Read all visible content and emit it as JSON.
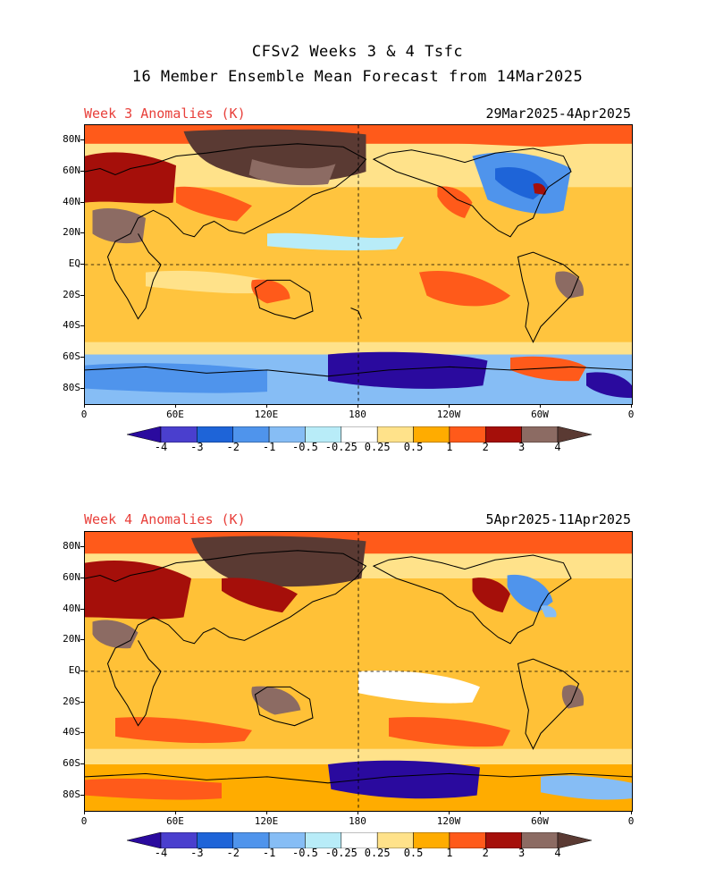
{
  "header": {
    "title_line1": "CFSv2 Weeks 3 & 4 Tsfc",
    "title_line2": "16 Member Ensemble Mean Forecast from 14Mar2025"
  },
  "panels": [
    {
      "label": "Week 3 Anomalies (K)",
      "dates": "29Mar2025-4Apr2025"
    },
    {
      "label": "Week 4 Anomalies (K)",
      "dates": "5Apr2025-11Apr2025"
    }
  ],
  "axes": {
    "lat_labels": [
      "80N",
      "60N",
      "40N",
      "20N",
      "EQ",
      "20S",
      "40S",
      "60S",
      "80S"
    ],
    "lat_values": [
      80,
      60,
      40,
      20,
      0,
      -20,
      -40,
      -60,
      -80
    ],
    "lon_labels": [
      "0",
      "60E",
      "120E",
      "180",
      "120W",
      "60W",
      "0"
    ],
    "lon_values": [
      0,
      60,
      120,
      180,
      240,
      300,
      360
    ]
  },
  "colorbar": {
    "levels": [
      "-4",
      "-3",
      "-2",
      "-1",
      "-0.5",
      "-0.25",
      "0.25",
      "0.5",
      "1",
      "2",
      "3",
      "4"
    ],
    "colors": [
      "#2a0a9e",
      "#4a3fce",
      "#1e64d8",
      "#4f94ec",
      "#86bdf5",
      "#b8ecf8",
      "#ffffff",
      "#ffe28a",
      "#ffac00",
      "#ff5a1a",
      "#a50f0a",
      "#8c6b63",
      "#5a3a33"
    ]
  },
  "map_colors": {
    "warm_light": "#ffe28a",
    "warm": "#ffac00",
    "warm_strong": "#ff5a1a",
    "hot": "#a50f0a",
    "very_hot": "#8c6b63",
    "extreme": "#5a3a33",
    "cool_light": "#b8ecf8",
    "cool": "#86bdf5",
    "cold": "#4f94ec",
    "very_cold": "#1e64d8",
    "extreme_cold": "#2a0a9e"
  }
}
